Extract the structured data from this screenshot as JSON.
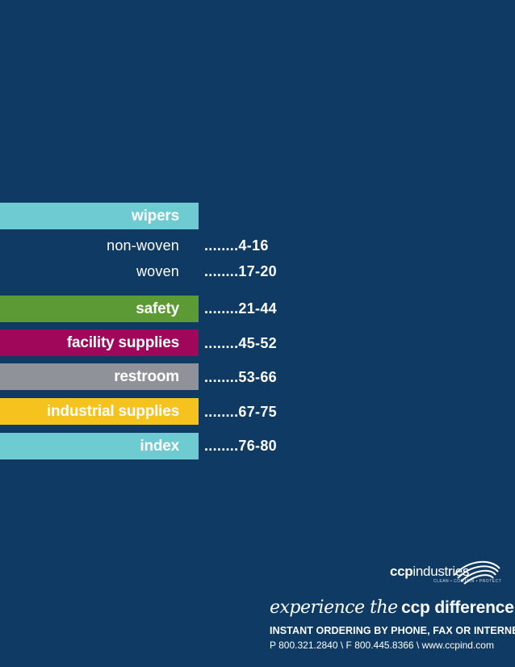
{
  "colors": {
    "background": "#0e3a63",
    "wipers": "#6fcbd2",
    "safety": "#5b9a35",
    "facility": "#a0075a",
    "restroom": "#8f9399",
    "industrial": "#f6c21e",
    "index": "#6fcbd2"
  },
  "toc": {
    "wipers": {
      "label": "wipers"
    },
    "non_woven": {
      "label": "non-woven",
      "pages": "........4-16"
    },
    "woven": {
      "label": "woven",
      "pages": "........17-20"
    },
    "safety": {
      "label": "safety",
      "pages": "........21-44"
    },
    "facility": {
      "label": "facility supplies",
      "pages": "........45-52"
    },
    "restroom": {
      "label": "restroom",
      "pages": "........53-66"
    },
    "industrial": {
      "label": "industrial supplies",
      "pages": "........67-75"
    },
    "index": {
      "label": "index",
      "pages": "........76-80"
    }
  },
  "brand": {
    "logo_ccp": "ccp",
    "logo_industries": "industries",
    "logo_tagline": "CLEAN • CONTAIN • PROTECT",
    "tag_script": "experience the",
    "tag_bold": "ccp difference.",
    "ordering": "INSTANT ORDERING BY PHONE, FAX OR INTERNET",
    "contact": "P 800.321.2840  \\  F 800.445.8366  \\  www.ccpind.com"
  }
}
